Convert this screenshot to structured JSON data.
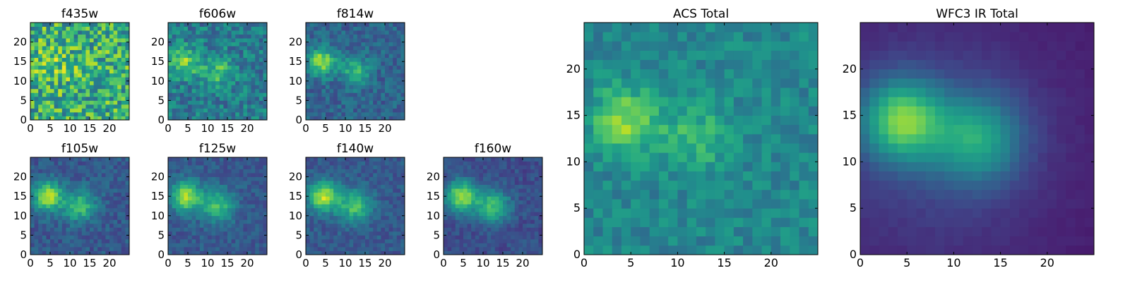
{
  "colors": {
    "background": "#ffffff",
    "axis": "#000000",
    "colormap": "viridis"
  },
  "chart_data": [
    {
      "type": "heatmap",
      "title": "f435w",
      "xticks": [
        "0",
        "5",
        "10",
        "15",
        "20"
      ],
      "yticks": [
        "0",
        "5",
        "10",
        "15",
        "20"
      ],
      "xlim": [
        0,
        25
      ],
      "ylim": [
        0,
        25
      ],
      "grid": false,
      "blobs": [
        [
          4.5,
          15,
          0.15,
          3
        ],
        [
          12,
          12.5,
          0.1,
          3
        ]
      ],
      "noise": 0.55,
      "base": 0.62,
      "seed": 3
    },
    {
      "type": "heatmap",
      "title": "f606w",
      "xticks": [
        "0",
        "5",
        "10",
        "15",
        "20"
      ],
      "yticks": [
        "0",
        "5",
        "10",
        "15",
        "20"
      ],
      "xlim": [
        0,
        25
      ],
      "ylim": [
        0,
        25
      ],
      "grid": false,
      "blobs": [
        [
          4,
          15,
          0.4,
          2.6
        ],
        [
          12.5,
          12.5,
          0.28,
          2.8
        ]
      ],
      "noise": 0.32,
      "base": 0.42,
      "seed": 7
    },
    {
      "type": "heatmap",
      "title": "f814w",
      "xticks": [
        "0",
        "5",
        "10",
        "15",
        "20"
      ],
      "yticks": [
        "0",
        "5",
        "10",
        "15",
        "20"
      ],
      "xlim": [
        0,
        25
      ],
      "ylim": [
        0,
        25
      ],
      "grid": false,
      "blobs": [
        [
          4,
          15,
          0.55,
          2.4
        ],
        [
          12.5,
          12.5,
          0.35,
          2.6
        ]
      ],
      "noise": 0.22,
      "base": 0.32,
      "seed": 11
    },
    {
      "type": "heatmap",
      "title": "f105w",
      "xticks": [
        "0",
        "5",
        "10",
        "15",
        "20"
      ],
      "yticks": [
        "0",
        "5",
        "10",
        "15",
        "20"
      ],
      "xlim": [
        0,
        25
      ],
      "ylim": [
        0,
        25
      ],
      "grid": false,
      "blobs": [
        [
          4.5,
          15,
          0.6,
          2.6
        ],
        [
          12.5,
          12.5,
          0.42,
          2.8
        ]
      ],
      "noise": 0.18,
      "base": 0.28,
      "seed": 13
    },
    {
      "type": "heatmap",
      "title": "f125w",
      "xticks": [
        "0",
        "5",
        "10",
        "15",
        "20"
      ],
      "yticks": [
        "0",
        "5",
        "10",
        "15",
        "20"
      ],
      "xlim": [
        0,
        25
      ],
      "ylim": [
        0,
        25
      ],
      "grid": false,
      "blobs": [
        [
          4.5,
          15,
          0.6,
          2.7
        ],
        [
          12.5,
          12.5,
          0.42,
          2.9
        ]
      ],
      "noise": 0.16,
      "base": 0.28,
      "seed": 17
    },
    {
      "type": "heatmap",
      "title": "f140w",
      "xticks": [
        "0",
        "5",
        "10",
        "15",
        "20"
      ],
      "yticks": [
        "0",
        "5",
        "10",
        "15",
        "20"
      ],
      "xlim": [
        0,
        25
      ],
      "ylim": [
        0,
        25
      ],
      "grid": false,
      "blobs": [
        [
          4.5,
          15,
          0.62,
          2.7
        ],
        [
          12.5,
          12.5,
          0.44,
          2.9
        ]
      ],
      "noise": 0.16,
      "base": 0.28,
      "seed": 19
    },
    {
      "type": "heatmap",
      "title": "f160w",
      "xticks": [
        "0",
        "5",
        "10",
        "15",
        "20"
      ],
      "yticks": [
        "0",
        "5",
        "10",
        "15",
        "20"
      ],
      "xlim": [
        0,
        25
      ],
      "ylim": [
        0,
        25
      ],
      "grid": false,
      "blobs": [
        [
          4.5,
          15,
          0.62,
          2.8
        ],
        [
          12.5,
          12.5,
          0.46,
          3.0
        ]
      ],
      "noise": 0.15,
      "base": 0.24,
      "seed": 23
    },
    {
      "type": "heatmap",
      "title": "ACS Total",
      "xticks": [
        "0",
        "5",
        "10",
        "15",
        "20"
      ],
      "yticks": [
        "0",
        "5",
        "10",
        "15",
        "20"
      ],
      "xlim": [
        0,
        25
      ],
      "ylim": [
        0,
        25
      ],
      "grid": false,
      "blobs": [
        [
          4.5,
          14.5,
          0.38,
          2.4
        ],
        [
          12,
          12.5,
          0.22,
          2.6
        ]
      ],
      "noise": 0.2,
      "base": 0.46,
      "seed": 29
    },
    {
      "type": "heatmap",
      "title": "WFC3 IR Total",
      "xticks": [
        "0",
        "5",
        "10",
        "15",
        "20"
      ],
      "yticks": [
        "0",
        "5",
        "10",
        "15",
        "20"
      ],
      "xlim": [
        0,
        25
      ],
      "ylim": [
        0,
        25
      ],
      "grid": false,
      "blobs": [
        [
          4.5,
          14.5,
          0.62,
          3.0
        ],
        [
          12.5,
          12.5,
          0.42,
          3.3
        ],
        [
          8,
          12,
          0.14,
          9
        ]
      ],
      "noise": 0.03,
      "base": 0.08,
      "seed": 31
    }
  ]
}
